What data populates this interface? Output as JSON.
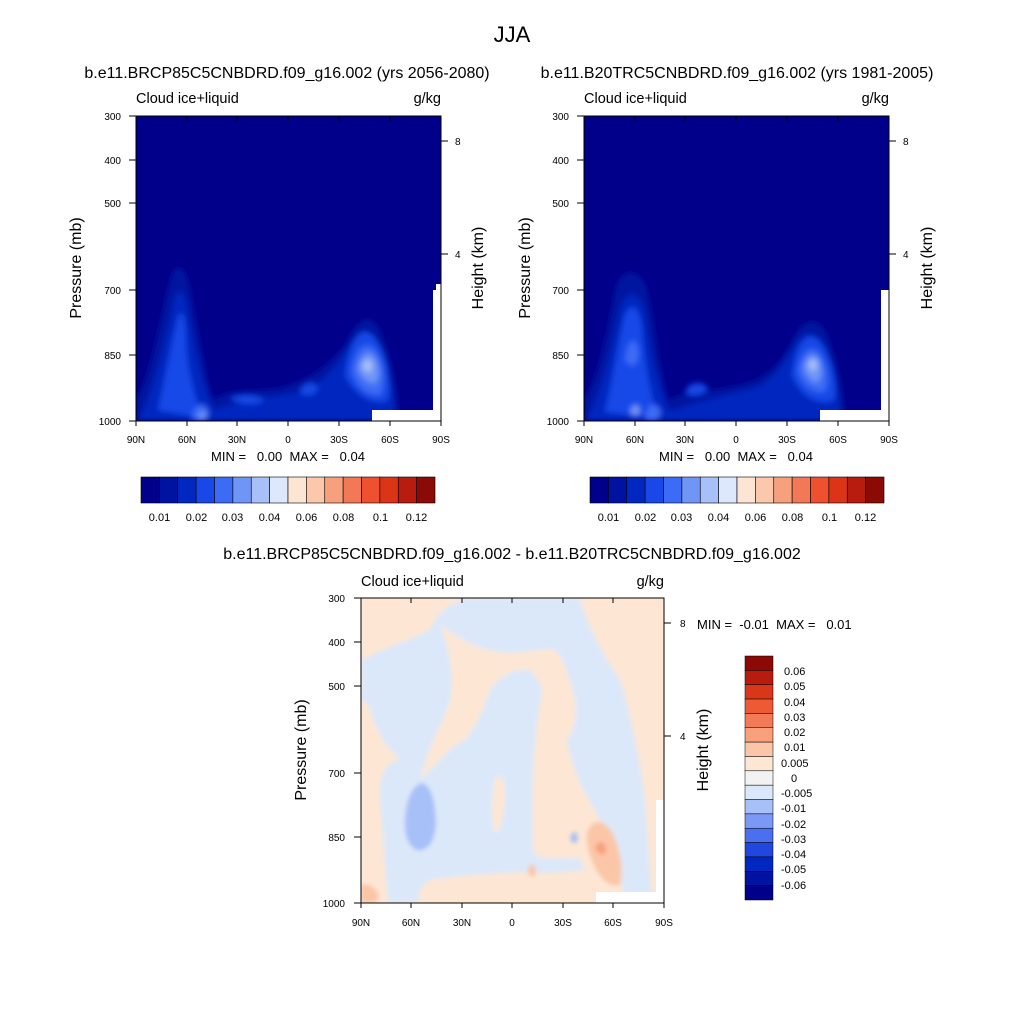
{
  "figure": {
    "title": "JJA"
  },
  "palette_abs": [
    "#00008b",
    "#0012a0",
    "#0028c0",
    "#1848e8",
    "#3c6cf5",
    "#6f96f7",
    "#a8c0f8",
    "#dde8fc",
    "#fde5d4",
    "#fbc8ac",
    "#f7a07e",
    "#f37855",
    "#ee5030",
    "#dc3416",
    "#b81c0e",
    "#8b0a06"
  ],
  "palette_diff": [
    "#00008b",
    "#0012a0",
    "#0028c0",
    "#2048e0",
    "#4a70f0",
    "#7b98f4",
    "#a8c0f8",
    "#dbe8fa",
    "#f2f2f2",
    "#fde7d4",
    "#fbc6a7",
    "#f8a07c",
    "#f37a57",
    "#ee5a33",
    "#d9371a",
    "#b81c0e",
    "#8b0a06"
  ],
  "chart_data": [
    {
      "type": "heatmap",
      "title": "b.e11.BRCP85C5CNBDRD.f09_g16.002 (yrs 2056-2080)",
      "left_label": "Cloud ice+liquid",
      "right_label": "g/kg",
      "ylabel": "Pressure (mb)",
      "y2label": "Height (km)",
      "x_ticks": [
        "90N",
        "60N",
        "30N",
        "0",
        "30S",
        "60S",
        "90S"
      ],
      "y_ticks": [
        "300",
        "400",
        "500",
        "700",
        "850",
        "1000"
      ],
      "y2_ticks": [
        "8",
        "4"
      ],
      "stats": "MIN =   0.00  MAX =   0.04",
      "colorbar_levels": [
        "0.01",
        "0.02",
        "0.03",
        "0.04",
        "0.06",
        "0.08",
        "0.1",
        "0.12"
      ]
    },
    {
      "type": "heatmap",
      "title": "b.e11.B20TRC5CNBDRD.f09_g16.002 (yrs 1981-2005)",
      "left_label": "Cloud ice+liquid",
      "right_label": "g/kg",
      "ylabel": "Pressure (mb)",
      "y2label": "Height (km)",
      "x_ticks": [
        "90N",
        "60N",
        "30N",
        "0",
        "30S",
        "60S",
        "90S"
      ],
      "y_ticks": [
        "300",
        "400",
        "500",
        "700",
        "850",
        "1000"
      ],
      "y2_ticks": [
        "8",
        "4"
      ],
      "stats": "MIN =   0.00  MAX =   0.04",
      "colorbar_levels": [
        "0.01",
        "0.02",
        "0.03",
        "0.04",
        "0.06",
        "0.08",
        "0.1",
        "0.12"
      ]
    },
    {
      "type": "heatmap",
      "title": "b.e11.BRCP85C5CNBDRD.f09_g16.002 - b.e11.B20TRC5CNBDRD.f09_g16.002",
      "left_label": "Cloud ice+liquid",
      "right_label": "g/kg",
      "ylabel": "Pressure (mb)",
      "y2label": "Height (km)",
      "x_ticks": [
        "90N",
        "60N",
        "30N",
        "0",
        "30S",
        "60S",
        "90S"
      ],
      "y_ticks": [
        "300",
        "400",
        "500",
        "700",
        "850",
        "1000"
      ],
      "y2_ticks": [
        "8",
        "4"
      ],
      "stats": "MIN =  -0.01  MAX =   0.01",
      "colorbar_levels": [
        "0.06",
        "0.05",
        "0.04",
        "0.03",
        "0.02",
        "0.01",
        "0.005",
        "0",
        "-0.005",
        "-0.01",
        "-0.02",
        "-0.03",
        "-0.04",
        "-0.05",
        "-0.06"
      ]
    }
  ]
}
